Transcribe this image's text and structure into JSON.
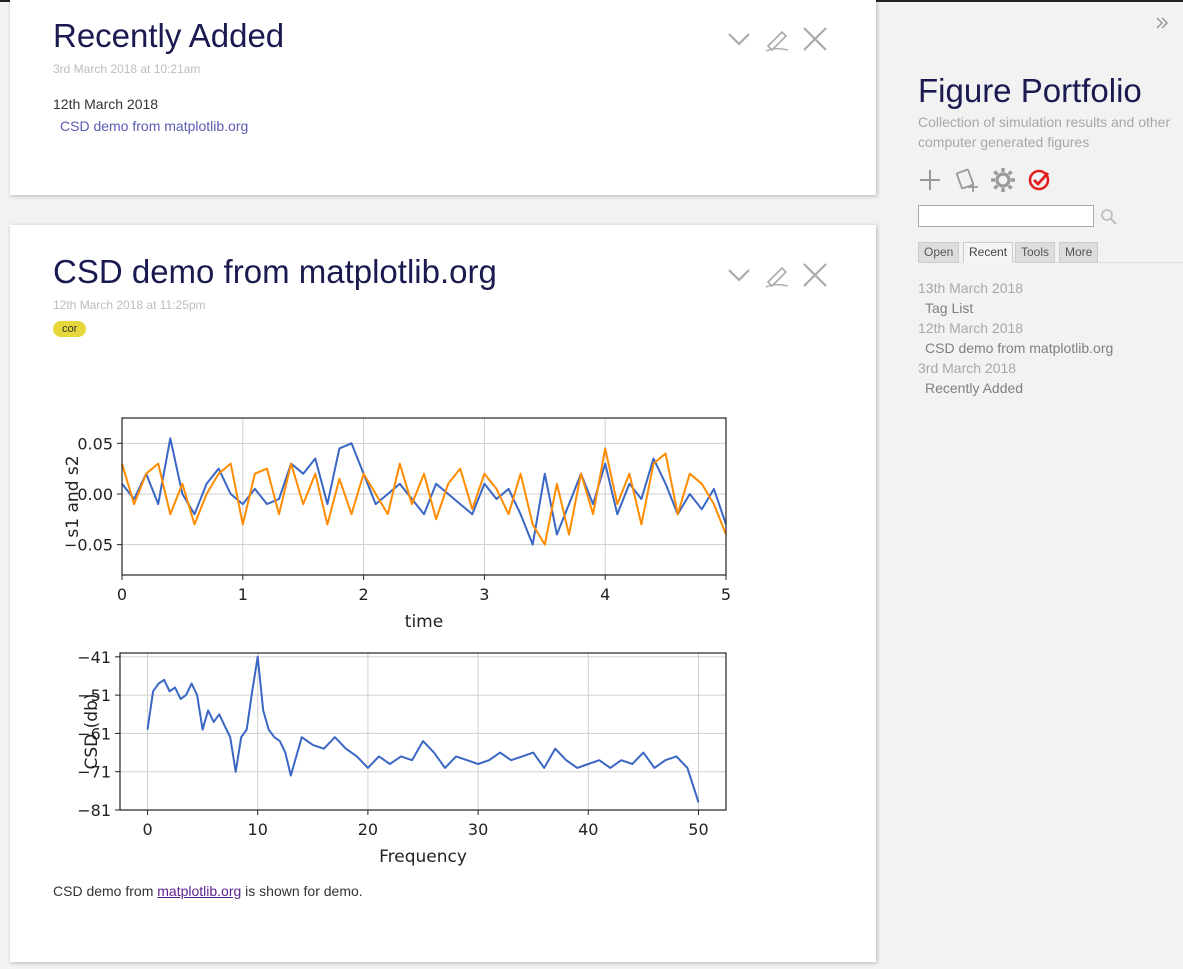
{
  "story": {
    "tiddler1": {
      "title": "Recently Added",
      "subtitle": "3rd March 2018 at 10:21am",
      "date_heading": "12th March 2018",
      "link": "CSD demo from matplotlib.org"
    },
    "tiddler2": {
      "title": "CSD demo from matplotlib.org",
      "subtitle": "12th March 2018 at 11:25pm",
      "tag": "cor",
      "caption_prefix": "CSD demo from ",
      "caption_link": "matplotlib.org",
      "caption_suffix": " is shown for demo."
    },
    "controls": {
      "fold": "chevron-down-icon",
      "edit": "pencil-icon",
      "close": "close-icon"
    }
  },
  "sidebar": {
    "title": "Figure Portfolio",
    "subtitle": "Collection of simulation results and other computer generated figures",
    "search_placeholder": "",
    "tabs": [
      {
        "label": "Open"
      },
      {
        "label": "Recent"
      },
      {
        "label": "Tools"
      },
      {
        "label": "More"
      }
    ],
    "active_tab": "Recent",
    "recent": [
      {
        "date": "13th March 2018",
        "item": "Tag List"
      },
      {
        "date": "12th March 2018",
        "item": "CSD demo from matplotlib.org"
      },
      {
        "date": "3rd March 2018",
        "item": "Recently Added"
      }
    ],
    "accent_color": "#e02020"
  },
  "chart_data": [
    {
      "type": "line",
      "xlabel": "time",
      "ylabel": "s1 and s2",
      "xlim": [
        0,
        5
      ],
      "ylim": [
        -0.08,
        0.075
      ],
      "xticks": [
        "0",
        "1",
        "2",
        "3",
        "4",
        "5"
      ],
      "yticks": [
        "0.05",
        "0.00",
        "−0.05"
      ],
      "ytick_values": [
        0.05,
        0.0,
        -0.05
      ],
      "grid": true,
      "series": [
        {
          "color": "#3a66c4",
          "x": [
            0,
            0.1,
            0.2,
            0.3,
            0.4,
            0.5,
            0.6,
            0.7,
            0.8,
            0.9,
            1.0,
            1.1,
            1.2,
            1.3,
            1.4,
            1.5,
            1.6,
            1.7,
            1.8,
            1.9,
            2.0,
            2.1,
            2.2,
            2.3,
            2.4,
            2.5,
            2.6,
            2.7,
            2.8,
            2.9,
            3.0,
            3.1,
            3.2,
            3.3,
            3.4,
            3.5,
            3.6,
            3.7,
            3.8,
            3.9,
            4.0,
            4.1,
            4.2,
            4.3,
            4.4,
            4.5,
            4.6,
            4.7,
            4.8,
            4.9,
            5.0
          ],
          "y": [
            0.01,
            -0.005,
            0.02,
            -0.01,
            0.055,
            0.0,
            -0.02,
            0.01,
            0.025,
            0.0,
            -0.01,
            0.005,
            -0.01,
            -0.005,
            0.03,
            0.02,
            0.035,
            -0.01,
            0.045,
            0.05,
            0.02,
            -0.01,
            0.0,
            0.01,
            -0.005,
            -0.02,
            0.01,
            0.0,
            -0.01,
            -0.02,
            0.01,
            -0.005,
            0.005,
            -0.02,
            -0.05,
            0.02,
            -0.04,
            -0.01,
            0.02,
            -0.01,
            0.03,
            -0.02,
            0.01,
            -0.005,
            0.035,
            0.01,
            -0.02,
            0.0,
            -0.015,
            0.005,
            -0.03
          ]
        },
        {
          "color": "#ff8c00",
          "x": [
            0,
            0.1,
            0.2,
            0.3,
            0.4,
            0.5,
            0.6,
            0.7,
            0.8,
            0.9,
            1.0,
            1.1,
            1.2,
            1.3,
            1.4,
            1.5,
            1.6,
            1.7,
            1.8,
            1.9,
            2.0,
            2.1,
            2.2,
            2.3,
            2.4,
            2.5,
            2.6,
            2.7,
            2.8,
            2.9,
            3.0,
            3.1,
            3.2,
            3.3,
            3.4,
            3.5,
            3.6,
            3.7,
            3.8,
            3.9,
            4.0,
            4.1,
            4.2,
            4.3,
            4.4,
            4.5,
            4.6,
            4.7,
            4.8,
            4.9,
            5.0
          ],
          "y": [
            0.03,
            -0.01,
            0.02,
            0.03,
            -0.02,
            0.01,
            -0.03,
            0.0,
            0.02,
            0.03,
            -0.03,
            0.02,
            0.025,
            -0.02,
            0.03,
            -0.01,
            0.02,
            -0.03,
            0.015,
            -0.02,
            0.02,
            0.0,
            -0.02,
            0.03,
            -0.01,
            0.02,
            -0.025,
            0.01,
            0.025,
            -0.015,
            0.02,
            0.005,
            -0.02,
            0.02,
            -0.03,
            -0.05,
            0.01,
            -0.04,
            0.02,
            -0.02,
            0.045,
            -0.01,
            0.02,
            -0.03,
            0.03,
            0.04,
            -0.02,
            0.02,
            0.01,
            -0.01,
            -0.04
          ]
        }
      ]
    },
    {
      "type": "line",
      "xlabel": "Frequency",
      "ylabel": "CSD (db)",
      "xlim": [
        -2.5,
        52.5
      ],
      "ylim": [
        -81,
        -40
      ],
      "xticks": [
        "0",
        "10",
        "20",
        "30",
        "40",
        "50"
      ],
      "xtick_values": [
        0,
        10,
        20,
        30,
        40,
        50
      ],
      "yticks": [
        "−41",
        "−51",
        "−61",
        "−71",
        "−81"
      ],
      "ytick_values": [
        -41,
        -51,
        -61,
        -71,
        -81
      ],
      "grid": true,
      "series": [
        {
          "color": "#3a66c4",
          "x": [
            0,
            0.5,
            1,
            1.5,
            2,
            2.5,
            3,
            3.5,
            4,
            4.5,
            5,
            5.5,
            6,
            6.5,
            7,
            7.5,
            8,
            8.5,
            9,
            9.5,
            10,
            10.5,
            11,
            11.5,
            12,
            12.5,
            13,
            14,
            15,
            16,
            17,
            18,
            19,
            20,
            21,
            22,
            23,
            24,
            25,
            26,
            27,
            28,
            29,
            30,
            31,
            32,
            33,
            34,
            35,
            36,
            37,
            38,
            39,
            40,
            41,
            42,
            43,
            44,
            45,
            46,
            47,
            48,
            49,
            50
          ],
          "y": [
            -60,
            -50,
            -48,
            -47,
            -50,
            -49,
            -52,
            -51,
            -48,
            -51,
            -60,
            -55,
            -58,
            -56,
            -59,
            -62,
            -71,
            -62,
            -60,
            -50,
            -41,
            -55,
            -60,
            -62,
            -63,
            -66,
            -72,
            -62,
            -64,
            -65,
            -62,
            -65,
            -67,
            -70,
            -67,
            -69,
            -67,
            -68,
            -63,
            -66,
            -70,
            -67,
            -68,
            -69,
            -68,
            -66,
            -68,
            -67,
            -66,
            -70,
            -65,
            -68,
            -70,
            -69,
            -68,
            -70,
            -68,
            -69,
            -66,
            -70,
            -68,
            -67,
            -70,
            -79
          ]
        }
      ]
    }
  ]
}
